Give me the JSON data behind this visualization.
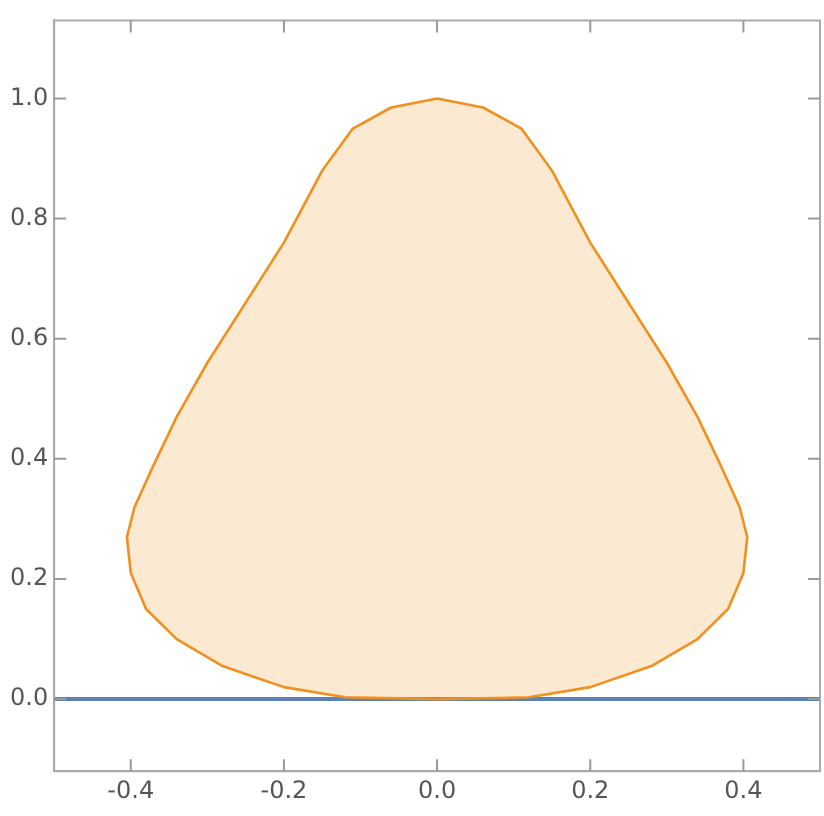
{
  "chart_data": {
    "type": "area",
    "xlim": [
      -0.5,
      0.5
    ],
    "ylim": [
      -0.12,
      1.13
    ],
    "xticks": [
      -0.4,
      -0.2,
      {
        "value": 0,
        "label": "0.0"
      },
      0.2,
      0.4
    ],
    "yticks": [
      {
        "value": 0,
        "label": "0.0"
      },
      0.2,
      0.4,
      0.6,
      0.8,
      {
        "value": 1,
        "label": "1.0"
      }
    ],
    "grid": false,
    "legend": false,
    "series": [
      {
        "type": "area",
        "color": "#f0901e",
        "x": [
          0,
          0.06,
          0.11,
          0.15,
          0.2,
          0.25,
          0.3,
          0.34,
          0.37,
          0.395,
          0.405,
          0.4,
          0.38,
          0.34,
          0.28,
          0.2,
          0.12,
          0,
          -0.12,
          -0.2,
          -0.28,
          -0.34,
          -0.38,
          -0.4,
          -0.405,
          -0.395,
          -0.37,
          -0.34,
          -0.3,
          -0.25,
          -0.2,
          -0.15,
          -0.11,
          -0.06,
          0
        ],
        "values": [
          1.0,
          0.985,
          0.95,
          0.88,
          0.76,
          0.66,
          0.56,
          0.47,
          0.39,
          0.32,
          0.27,
          0.21,
          0.15,
          0.1,
          0.055,
          0.02,
          0.003,
          0,
          0.003,
          0.02,
          0.055,
          0.1,
          0.15,
          0.21,
          0.27,
          0.32,
          0.39,
          0.47,
          0.56,
          0.66,
          0.76,
          0.88,
          0.95,
          0.985,
          1.0
        ]
      },
      {
        "type": "line",
        "color": "#5e81b5",
        "x": [
          -0.5,
          0.5
        ],
        "values": [
          0,
          0
        ]
      }
    ]
  }
}
